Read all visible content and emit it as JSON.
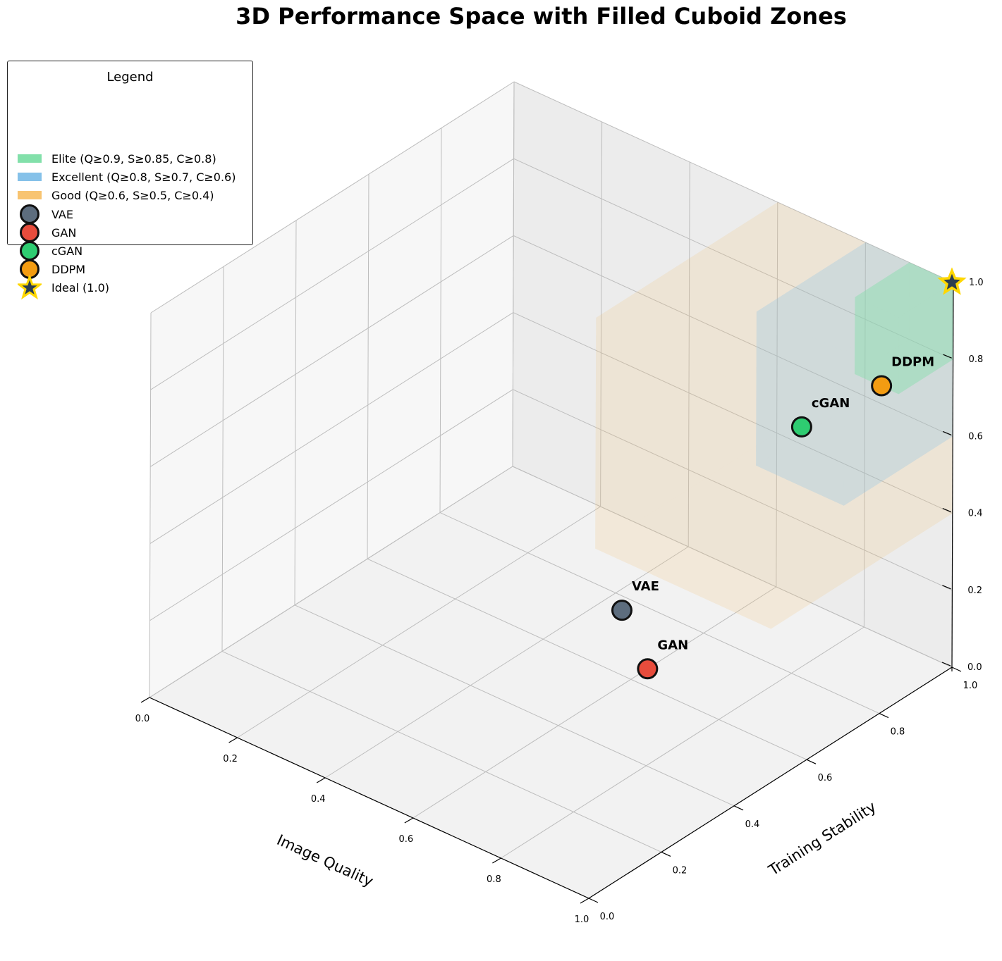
{
  "chart_data": {
    "type": "scatter",
    "title": "3D Performance Space with Filled Cuboid Zones",
    "xlabel": "Image Quality",
    "ylabel": "Training Stability",
    "zlabel": "",
    "xlim": [
      0,
      1
    ],
    "ylim": [
      0,
      1
    ],
    "zlim": [
      0,
      1
    ],
    "xticks": [
      "0.0",
      "0.2",
      "0.4",
      "0.6",
      "0.8",
      "1.0"
    ],
    "yticks": [
      "0.0",
      "0.2",
      "0.4",
      "0.6",
      "0.8",
      "1.0"
    ],
    "zticks": [
      "0.0",
      "0.2",
      "0.4",
      "0.6",
      "0.8",
      "1.0"
    ],
    "grid": true,
    "legend_title": "Legend",
    "legend_position": "top-left",
    "zones": [
      {
        "name": "Elite (Q≥0.9, S≥0.85, C≥0.8)",
        "min": [
          0.9,
          0.85,
          0.8
        ],
        "max": [
          1.0,
          1.0,
          1.0
        ],
        "color": "#82e0aa"
      },
      {
        "name": "Excellent (Q≥0.8, S≥0.7, C≥0.6)",
        "min": [
          0.8,
          0.7,
          0.6
        ],
        "max": [
          1.0,
          1.0,
          1.0
        ],
        "color": "#85c1e9"
      },
      {
        "name": "Good (Q≥0.6, S≥0.5, C≥0.4)",
        "min": [
          0.6,
          0.5,
          0.4
        ],
        "max": [
          1.0,
          1.0,
          1.0
        ],
        "color": "#f8c471"
      }
    ],
    "series": [
      {
        "name": "VAE",
        "x": 0.62,
        "y": 0.55,
        "z": 0.22,
        "color": "#5d6d7e"
      },
      {
        "name": "GAN",
        "x": 0.72,
        "y": 0.5,
        "z": 0.15,
        "color": "#e74c3c"
      },
      {
        "name": "cGAN",
        "x": 0.78,
        "y": 0.85,
        "z": 0.6,
        "color": "#2ecc71"
      },
      {
        "name": "DDPM",
        "x": 0.92,
        "y": 0.9,
        "z": 0.75,
        "color": "#f39c12"
      }
    ],
    "ideal": {
      "name": "Ideal (1.0)",
      "x": 1.0,
      "y": 1.0,
      "z": 1.0,
      "color": "#2c3e50",
      "edge": "#ffd700"
    }
  }
}
